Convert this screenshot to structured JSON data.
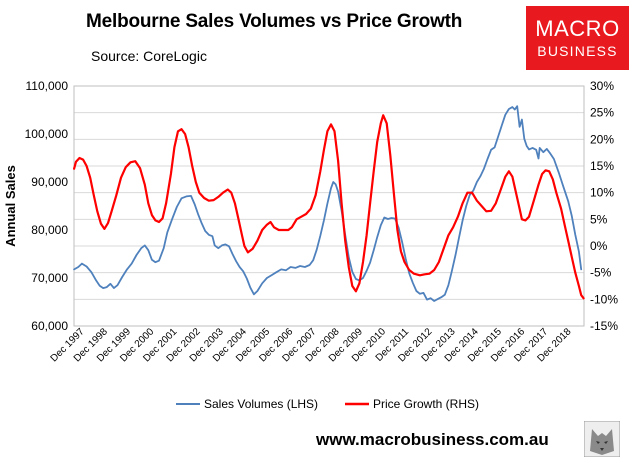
{
  "header": {
    "title": "Melbourne Sales Volumes vs Price Growth",
    "source": "Source: CoreLogic"
  },
  "logo": {
    "line1": "MACRO",
    "line2": "BUSINESS",
    "bg_color": "#e8191f"
  },
  "footer": {
    "website": "www.macrobusiness.com.au",
    "icon": "wolf-icon"
  },
  "chart_data": {
    "type": "line",
    "ylabel": "Annual Sales",
    "y_left": {
      "min": 60000,
      "max": 110000,
      "step": 10000,
      "ticks": [
        "60,000",
        "70,000",
        "80,000",
        "90,000",
        "100,000",
        "110,000"
      ]
    },
    "y_right": {
      "min": -15,
      "max": 30,
      "step": 5,
      "ticks": [
        "-15%",
        "-10%",
        "-5%",
        "0%",
        "5%",
        "10%",
        "15%",
        "20%",
        "25%",
        "30%"
      ]
    },
    "x_range": [
      1997.917,
      2019.417
    ],
    "x_ticks": [
      "Dec 1997",
      "Dec 1998",
      "Dec 1999",
      "Dec 2000",
      "Dec 2001",
      "Dec 2002",
      "Dec 2003",
      "Dec 2004",
      "Dec 2005",
      "Dec 2006",
      "Dec 2007",
      "Dec 2008",
      "Dec 2009",
      "Dec 2010",
      "Dec 2011",
      "Dec 2012",
      "Dec 2013",
      "Dec 2014",
      "Dec 2015",
      "Dec 2016",
      "Dec 2017",
      "Dec 2018"
    ],
    "grid": true,
    "legend_position": "bottom",
    "series": [
      {
        "name": "Sales Volumes (LHS)",
        "axis": "left",
        "color": "#4f81bd",
        "points": [
          [
            1997.92,
            71800
          ],
          [
            1998.1,
            72300
          ],
          [
            1998.25,
            73000
          ],
          [
            1998.45,
            72400
          ],
          [
            1998.65,
            71200
          ],
          [
            1998.85,
            69500
          ],
          [
            1999.0,
            68400
          ],
          [
            1999.15,
            67900
          ],
          [
            1999.3,
            68100
          ],
          [
            1999.45,
            68800
          ],
          [
            1999.6,
            67900
          ],
          [
            1999.75,
            68500
          ],
          [
            1999.95,
            70200
          ],
          [
            2000.15,
            71800
          ],
          [
            2000.35,
            73000
          ],
          [
            2000.55,
            74800
          ],
          [
            2000.75,
            76200
          ],
          [
            2000.9,
            76800
          ],
          [
            2001.05,
            75800
          ],
          [
            2001.2,
            73800
          ],
          [
            2001.35,
            73300
          ],
          [
            2001.5,
            73600
          ],
          [
            2001.7,
            76200
          ],
          [
            2001.85,
            79500
          ],
          [
            2002.05,
            82200
          ],
          [
            2002.25,
            84800
          ],
          [
            2002.45,
            86600
          ],
          [
            2002.65,
            87000
          ],
          [
            2002.85,
            87100
          ],
          [
            2003.0,
            85400
          ],
          [
            2003.15,
            83300
          ],
          [
            2003.3,
            81400
          ],
          [
            2003.45,
            79800
          ],
          [
            2003.6,
            79000
          ],
          [
            2003.75,
            78700
          ],
          [
            2003.85,
            76800
          ],
          [
            2004.0,
            76200
          ],
          [
            2004.15,
            76800
          ],
          [
            2004.3,
            77000
          ],
          [
            2004.45,
            76600
          ],
          [
            2004.6,
            75000
          ],
          [
            2004.75,
            73500
          ],
          [
            2004.9,
            72300
          ],
          [
            2005.05,
            71400
          ],
          [
            2005.2,
            69900
          ],
          [
            2005.35,
            68000
          ],
          [
            2005.5,
            66600
          ],
          [
            2005.65,
            67300
          ],
          [
            2005.85,
            68900
          ],
          [
            2006.05,
            70000
          ],
          [
            2006.25,
            70600
          ],
          [
            2006.45,
            71200
          ],
          [
            2006.65,
            71800
          ],
          [
            2006.85,
            71600
          ],
          [
            2007.05,
            72300
          ],
          [
            2007.25,
            72100
          ],
          [
            2007.45,
            72500
          ],
          [
            2007.65,
            72300
          ],
          [
            2007.85,
            72700
          ],
          [
            2008.0,
            73700
          ],
          [
            2008.15,
            75900
          ],
          [
            2008.3,
            78800
          ],
          [
            2008.45,
            82000
          ],
          [
            2008.6,
            85500
          ],
          [
            2008.75,
            88700
          ],
          [
            2008.85,
            90000
          ],
          [
            2008.95,
            89500
          ],
          [
            2009.05,
            88000
          ],
          [
            2009.2,
            84000
          ],
          [
            2009.35,
            79000
          ],
          [
            2009.5,
            74300
          ],
          [
            2009.65,
            71300
          ],
          [
            2009.8,
            69800
          ],
          [
            2009.95,
            69500
          ],
          [
            2010.1,
            70000
          ],
          [
            2010.25,
            71500
          ],
          [
            2010.4,
            73200
          ],
          [
            2010.55,
            75800
          ],
          [
            2010.7,
            78500
          ],
          [
            2010.85,
            81000
          ],
          [
            2011.0,
            82600
          ],
          [
            2011.15,
            82300
          ],
          [
            2011.3,
            82500
          ],
          [
            2011.45,
            82400
          ],
          [
            2011.6,
            80500
          ],
          [
            2011.75,
            77500
          ],
          [
            2011.9,
            74000
          ],
          [
            2012.05,
            71000
          ],
          [
            2012.2,
            69000
          ],
          [
            2012.35,
            67300
          ],
          [
            2012.5,
            66700
          ],
          [
            2012.65,
            66900
          ],
          [
            2012.8,
            65500
          ],
          [
            2012.95,
            65800
          ],
          [
            2013.1,
            65200
          ],
          [
            2013.25,
            65600
          ],
          [
            2013.4,
            66000
          ],
          [
            2013.55,
            66500
          ],
          [
            2013.7,
            68500
          ],
          [
            2013.85,
            71500
          ],
          [
            2014.0,
            74800
          ],
          [
            2014.15,
            78500
          ],
          [
            2014.3,
            82000
          ],
          [
            2014.45,
            85000
          ],
          [
            2014.6,
            87300
          ],
          [
            2014.75,
            88200
          ],
          [
            2014.9,
            90000
          ],
          [
            2015.05,
            91200
          ],
          [
            2015.2,
            92800
          ],
          [
            2015.35,
            94800
          ],
          [
            2015.5,
            96700
          ],
          [
            2015.65,
            97200
          ],
          [
            2015.8,
            99500
          ],
          [
            2015.95,
            101800
          ],
          [
            2016.1,
            104000
          ],
          [
            2016.25,
            105200
          ],
          [
            2016.4,
            105600
          ],
          [
            2016.5,
            105100
          ],
          [
            2016.6,
            105800
          ],
          [
            2016.7,
            101500
          ],
          [
            2016.8,
            103000
          ],
          [
            2016.9,
            99000
          ],
          [
            2017.0,
            97500
          ],
          [
            2017.1,
            96800
          ],
          [
            2017.25,
            97100
          ],
          [
            2017.4,
            96700
          ],
          [
            2017.5,
            94900
          ],
          [
            2017.55,
            97100
          ],
          [
            2017.7,
            96200
          ],
          [
            2017.85,
            96900
          ],
          [
            2018.0,
            95900
          ],
          [
            2018.15,
            94800
          ],
          [
            2018.35,
            92000
          ],
          [
            2018.55,
            89000
          ],
          [
            2018.75,
            86000
          ],
          [
            2018.9,
            83000
          ],
          [
            2019.05,
            79000
          ],
          [
            2019.2,
            75500
          ],
          [
            2019.3,
            71800
          ]
        ]
      },
      {
        "name": "Price Growth (RHS)",
        "axis": "right",
        "color": "#ff0000",
        "points": [
          [
            1997.92,
            14.5
          ],
          [
            1998.0,
            15.8
          ],
          [
            1998.15,
            16.5
          ],
          [
            1998.3,
            16.2
          ],
          [
            1998.45,
            15.0
          ],
          [
            1998.6,
            12.8
          ],
          [
            1998.75,
            9.5
          ],
          [
            1998.9,
            6.5
          ],
          [
            1999.05,
            4.2
          ],
          [
            1999.2,
            3.2
          ],
          [
            1999.35,
            4.3
          ],
          [
            1999.5,
            6.5
          ],
          [
            1999.7,
            9.5
          ],
          [
            1999.9,
            12.8
          ],
          [
            2000.1,
            14.8
          ],
          [
            2000.3,
            15.7
          ],
          [
            2000.5,
            15.9
          ],
          [
            2000.7,
            14.6
          ],
          [
            2000.9,
            11.5
          ],
          [
            2001.05,
            8.0
          ],
          [
            2001.2,
            5.8
          ],
          [
            2001.35,
            4.8
          ],
          [
            2001.5,
            4.5
          ],
          [
            2001.65,
            5.2
          ],
          [
            2001.8,
            8.0
          ],
          [
            2002.0,
            13.5
          ],
          [
            2002.15,
            18.5
          ],
          [
            2002.3,
            21.5
          ],
          [
            2002.45,
            21.9
          ],
          [
            2002.6,
            21.0
          ],
          [
            2002.75,
            18.5
          ],
          [
            2002.9,
            15.0
          ],
          [
            2003.05,
            12.0
          ],
          [
            2003.2,
            10.0
          ],
          [
            2003.4,
            9.0
          ],
          [
            2003.6,
            8.5
          ],
          [
            2003.8,
            8.6
          ],
          [
            2004.0,
            9.2
          ],
          [
            2004.2,
            10.0
          ],
          [
            2004.4,
            10.6
          ],
          [
            2004.55,
            10.0
          ],
          [
            2004.7,
            8.0
          ],
          [
            2004.85,
            5.0
          ],
          [
            2005.0,
            2.0
          ],
          [
            2005.1,
            0.0
          ],
          [
            2005.25,
            -1.2
          ],
          [
            2005.45,
            -0.5
          ],
          [
            2005.65,
            1.0
          ],
          [
            2005.85,
            3.0
          ],
          [
            2006.05,
            4.0
          ],
          [
            2006.2,
            4.5
          ],
          [
            2006.35,
            3.5
          ],
          [
            2006.55,
            3.0
          ],
          [
            2006.75,
            3.0
          ],
          [
            2006.95,
            3.0
          ],
          [
            2007.1,
            3.5
          ],
          [
            2007.3,
            5.0
          ],
          [
            2007.5,
            5.5
          ],
          [
            2007.7,
            6.0
          ],
          [
            2007.9,
            7.0
          ],
          [
            2008.1,
            9.5
          ],
          [
            2008.3,
            14.0
          ],
          [
            2008.45,
            18.0
          ],
          [
            2008.6,
            21.5
          ],
          [
            2008.75,
            22.8
          ],
          [
            2008.9,
            21.5
          ],
          [
            2009.05,
            16.0
          ],
          [
            2009.2,
            8.0
          ],
          [
            2009.35,
            1.0
          ],
          [
            2009.5,
            -4.0
          ],
          [
            2009.65,
            -7.5
          ],
          [
            2009.8,
            -8.5
          ],
          [
            2009.95,
            -7.0
          ],
          [
            2010.1,
            -3.0
          ],
          [
            2010.25,
            2.0
          ],
          [
            2010.4,
            8.0
          ],
          [
            2010.55,
            14.0
          ],
          [
            2010.7,
            19.5
          ],
          [
            2010.85,
            23.0
          ],
          [
            2010.95,
            24.5
          ],
          [
            2011.1,
            23.0
          ],
          [
            2011.25,
            17.0
          ],
          [
            2011.4,
            10.0
          ],
          [
            2011.55,
            3.0
          ],
          [
            2011.7,
            -1.0
          ],
          [
            2011.85,
            -3.0
          ],
          [
            2012.05,
            -4.5
          ],
          [
            2012.25,
            -5.2
          ],
          [
            2012.5,
            -5.5
          ],
          [
            2012.7,
            -5.3
          ],
          [
            2012.9,
            -5.2
          ],
          [
            2013.1,
            -4.5
          ],
          [
            2013.3,
            -3.0
          ],
          [
            2013.5,
            -0.5
          ],
          [
            2013.7,
            2.0
          ],
          [
            2013.9,
            3.5
          ],
          [
            2014.1,
            5.5
          ],
          [
            2014.3,
            8.0
          ],
          [
            2014.5,
            10.0
          ],
          [
            2014.7,
            10.0
          ],
          [
            2014.9,
            8.5
          ],
          [
            2015.1,
            7.5
          ],
          [
            2015.3,
            6.5
          ],
          [
            2015.5,
            6.6
          ],
          [
            2015.7,
            8.0
          ],
          [
            2015.9,
            10.5
          ],
          [
            2016.1,
            13.0
          ],
          [
            2016.25,
            14.0
          ],
          [
            2016.4,
            13.0
          ],
          [
            2016.55,
            10.0
          ],
          [
            2016.7,
            7.0
          ],
          [
            2016.8,
            5.0
          ],
          [
            2016.95,
            4.8
          ],
          [
            2017.1,
            5.5
          ],
          [
            2017.3,
            8.5
          ],
          [
            2017.5,
            11.5
          ],
          [
            2017.65,
            13.5
          ],
          [
            2017.8,
            14.2
          ],
          [
            2017.95,
            14.0
          ],
          [
            2018.1,
            12.5
          ],
          [
            2018.25,
            10.0
          ],
          [
            2018.45,
            7.0
          ],
          [
            2018.6,
            4.0
          ],
          [
            2018.75,
            1.0
          ],
          [
            2018.9,
            -2.0
          ],
          [
            2019.05,
            -5.0
          ],
          [
            2019.2,
            -7.5
          ],
          [
            2019.3,
            -9.2
          ],
          [
            2019.4,
            -9.8
          ]
        ]
      }
    ]
  }
}
